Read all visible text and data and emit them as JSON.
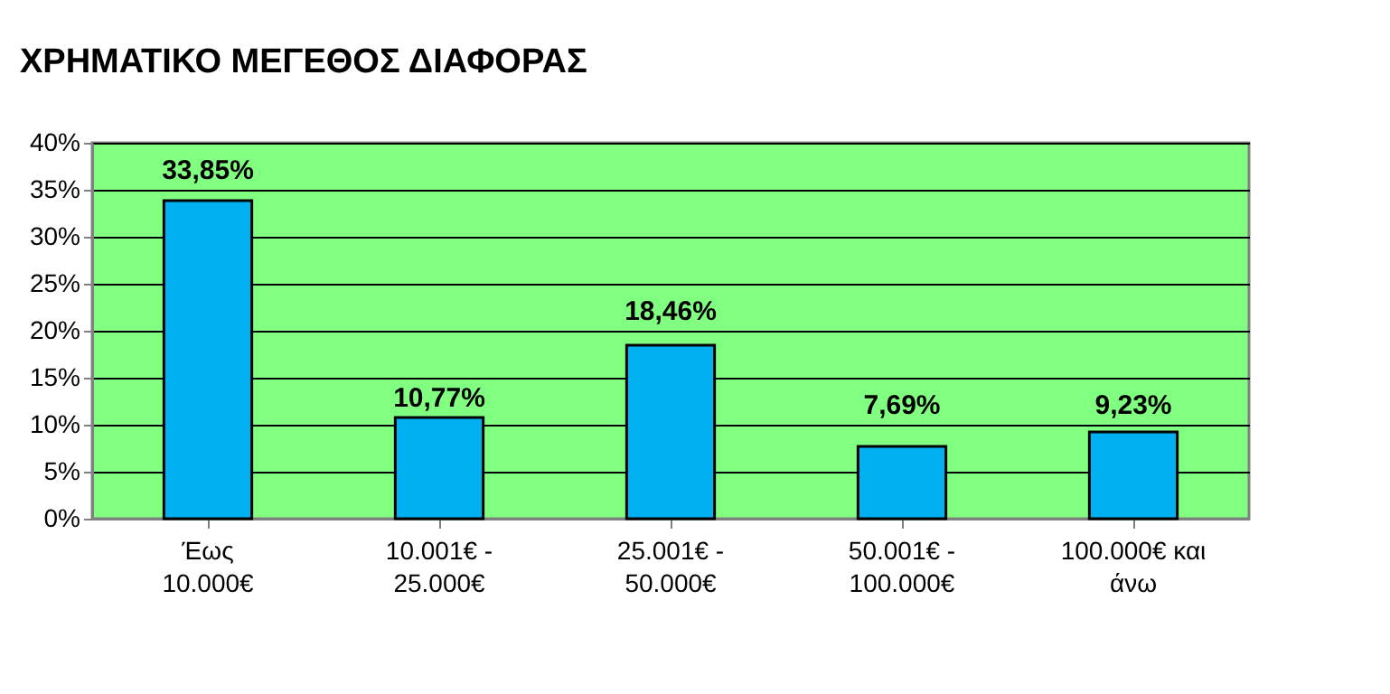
{
  "chart_data": {
    "type": "bar",
    "title": "ΧΡΗΜΑΤΙΚΟ ΜΕΓΕΘΟΣ ΔΙΑΦΟΡΑΣ",
    "categories": [
      "Έως 10.000€",
      "10.001€ - 25.000€",
      "25.001€ - 50.000€",
      "50.001€ - 100.000€",
      "100.000€ και άνω"
    ],
    "values": [
      33.85,
      10.77,
      18.46,
      7.69,
      9.23
    ],
    "value_labels": [
      "33,85%",
      "10,77%",
      "18,46%",
      "7,69%",
      "9,23%"
    ],
    "color": "#00b0f0",
    "ylim": [
      0,
      40
    ],
    "yticks": [
      {
        "value": 0,
        "label": "0%"
      },
      {
        "value": 5,
        "label": "5%"
      },
      {
        "value": 10,
        "label": "10%"
      },
      {
        "value": 15,
        "label": "15%"
      },
      {
        "value": 20,
        "label": "20%"
      },
      {
        "value": 25,
        "label": "25%"
      },
      {
        "value": 30,
        "label": "30%"
      },
      {
        "value": 35,
        "label": "35%"
      },
      {
        "value": 40,
        "label": "40%"
      }
    ],
    "grid": "y"
  }
}
